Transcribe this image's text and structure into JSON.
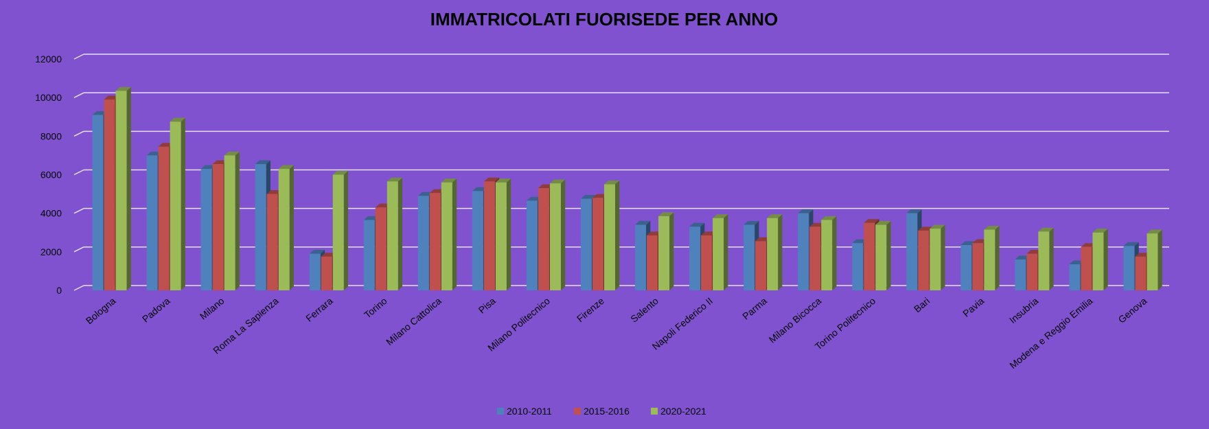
{
  "colors": {
    "background": "#8052d0",
    "gridline": "#e8e0f8",
    "text": "#000000"
  },
  "chart_data": {
    "type": "bar",
    "title": "IMMATRICOLATI FUORISEDE PER ANNO",
    "xlabel": "",
    "ylabel": "",
    "ylim": [
      0,
      12000
    ],
    "yticks": [
      0,
      2000,
      4000,
      6000,
      8000,
      10000,
      12000
    ],
    "grid": true,
    "legend_position": "bottom",
    "categories": [
      "Bologna",
      "Padova",
      "Milano",
      "Roma La Sapienza",
      "Ferrara",
      "Torino",
      "Milano Cattolica",
      "Pisa",
      "Milano Politecnico",
      "Firenze",
      "Salento",
      "Napoli Federico II",
      "Parma",
      "Milano Bicocca",
      "Torino Politecnico",
      "Bari",
      "Pavia",
      "Insubria",
      "Modena e Reggio Emilia",
      "Genova"
    ],
    "series": [
      {
        "name": "2010-2011",
        "color": "#4f81bd",
        "values": [
          9100,
          7000,
          6300,
          6550,
          1900,
          3650,
          4900,
          5150,
          4650,
          4750,
          3400,
          3300,
          3400,
          4000,
          2450,
          4000,
          2350,
          1600,
          1350,
          2300
        ]
      },
      {
        "name": "2015-2016",
        "color": "#c0504d",
        "values": [
          9900,
          7450,
          6550,
          5000,
          1750,
          4300,
          5050,
          5650,
          5300,
          4800,
          2850,
          2850,
          2550,
          3300,
          3500,
          3100,
          2450,
          1900,
          2250,
          1750
        ]
      },
      {
        "name": "2020-2021",
        "color": "#9bbb59",
        "values": [
          10350,
          8750,
          7000,
          6300,
          6000,
          5650,
          5600,
          5600,
          5550,
          5500,
          3850,
          3750,
          3750,
          3650,
          3400,
          3200,
          3150,
          3050,
          3000,
          2950
        ]
      }
    ]
  }
}
